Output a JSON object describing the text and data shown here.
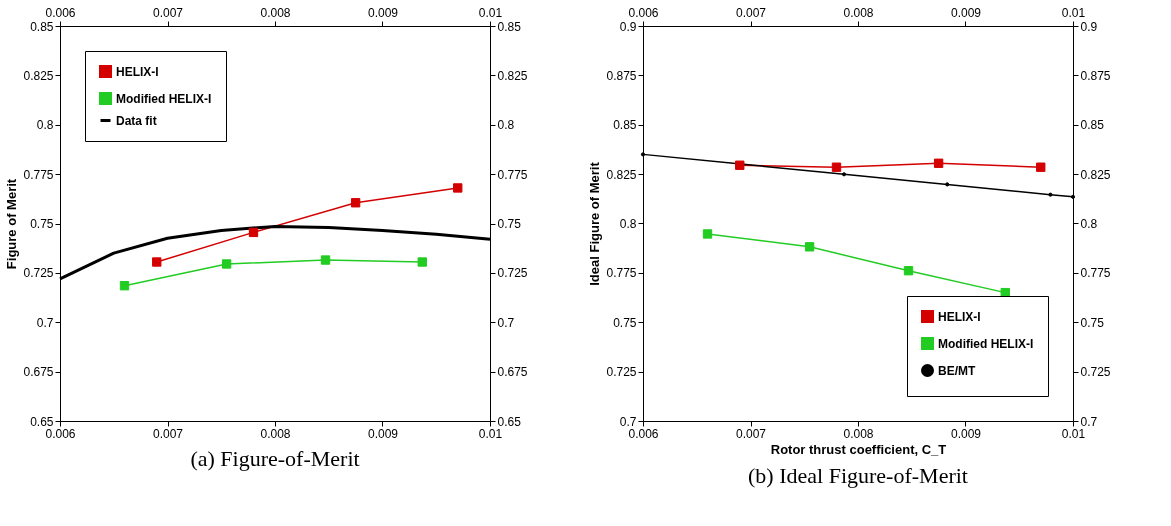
{
  "chart_data": [
    {
      "type": "line",
      "title": "(a) Figure-of-Merit",
      "ylabel": "Figure of Merit",
      "xlim": [
        0.006,
        0.01
      ],
      "xticks": [
        0.006,
        0.007,
        0.008,
        0.009,
        0.01
      ],
      "x2lim": [
        0.006,
        0.01
      ],
      "x2ticks": [
        0.006,
        0.007,
        0.008,
        0.009,
        0.01
      ],
      "ylim": [
        0.65,
        0.85
      ],
      "yticks": [
        0.65,
        0.675,
        0.7,
        0.725,
        0.75,
        0.775,
        0.8,
        0.825,
        0.85
      ],
      "y2lim": [
        0.65,
        0.85
      ],
      "y2ticks": [
        0.65,
        0.675,
        0.7,
        0.725,
        0.75,
        0.775,
        0.8,
        0.825,
        0.85
      ],
      "grid": false,
      "legend": "top left",
      "series": [
        {
          "name": "HELIX-I",
          "color": "#d40000",
          "marker": "square",
          "x": [
            0.0069,
            0.0078,
            0.00875,
            0.0097
          ],
          "values": [
            0.7305,
            0.7455,
            0.7605,
            0.768
          ]
        },
        {
          "name": "Modified HELIX-I",
          "color": "#22cc22",
          "marker": "square",
          "x": [
            0.0066,
            0.00755,
            0.00847,
            0.00937
          ],
          "values": [
            0.7185,
            0.7295,
            0.7315,
            0.7305
          ]
        },
        {
          "name": "Data fit",
          "color": "#000000",
          "marker": "none",
          "x": [
            0.006,
            0.0065,
            0.007,
            0.0075,
            0.008,
            0.0085,
            0.009,
            0.0095,
            0.01
          ],
          "values": [
            0.722,
            0.735,
            0.7425,
            0.7465,
            0.7485,
            0.748,
            0.7465,
            0.7445,
            0.742
          ]
        }
      ]
    },
    {
      "type": "line",
      "title": "(b) Ideal Figure-of-Merit",
      "xlabel": "Rotor thrust coefficient, C_T",
      "ylabel": "Ideal Figure of Merit",
      "xlim": [
        0.006,
        0.01
      ],
      "xticks": [
        0.006,
        0.007,
        0.008,
        0.009,
        0.01
      ],
      "x2lim": [
        0.006,
        0.01
      ],
      "x2ticks": [
        0.006,
        0.007,
        0.008,
        0.009,
        0.01
      ],
      "ylim": [
        0.7,
        0.9
      ],
      "yticks": [
        0.7,
        0.725,
        0.75,
        0.775,
        0.8,
        0.825,
        0.85,
        0.875,
        0.9
      ],
      "y2lim": [
        0.7,
        0.9
      ],
      "y2ticks": [
        0.7,
        0.725,
        0.75,
        0.775,
        0.8,
        0.825,
        0.85,
        0.875,
        0.9
      ],
      "grid": false,
      "legend": "bottom right",
      "series": [
        {
          "name": "HELIX-I",
          "color": "#d40000",
          "marker": "square",
          "x": [
            0.0069,
            0.0078,
            0.00875,
            0.0097
          ],
          "values": [
            0.8295,
            0.8285,
            0.8305,
            0.8285
          ]
        },
        {
          "name": "Modified HELIX-I",
          "color": "#22cc22",
          "marker": "square",
          "x": [
            0.0066,
            0.00755,
            0.00847,
            0.00937
          ],
          "values": [
            0.7947,
            0.7882,
            0.7761,
            0.765
          ]
        },
        {
          "name": "BE/MT",
          "color": "#000000",
          "marker": "circle",
          "x": [
            0.006,
            0.00691,
            0.00787,
            0.00883,
            0.00979,
            0.01
          ],
          "values": [
            0.835,
            0.8301,
            0.8249,
            0.8198,
            0.8146,
            0.8135
          ]
        }
      ]
    }
  ]
}
